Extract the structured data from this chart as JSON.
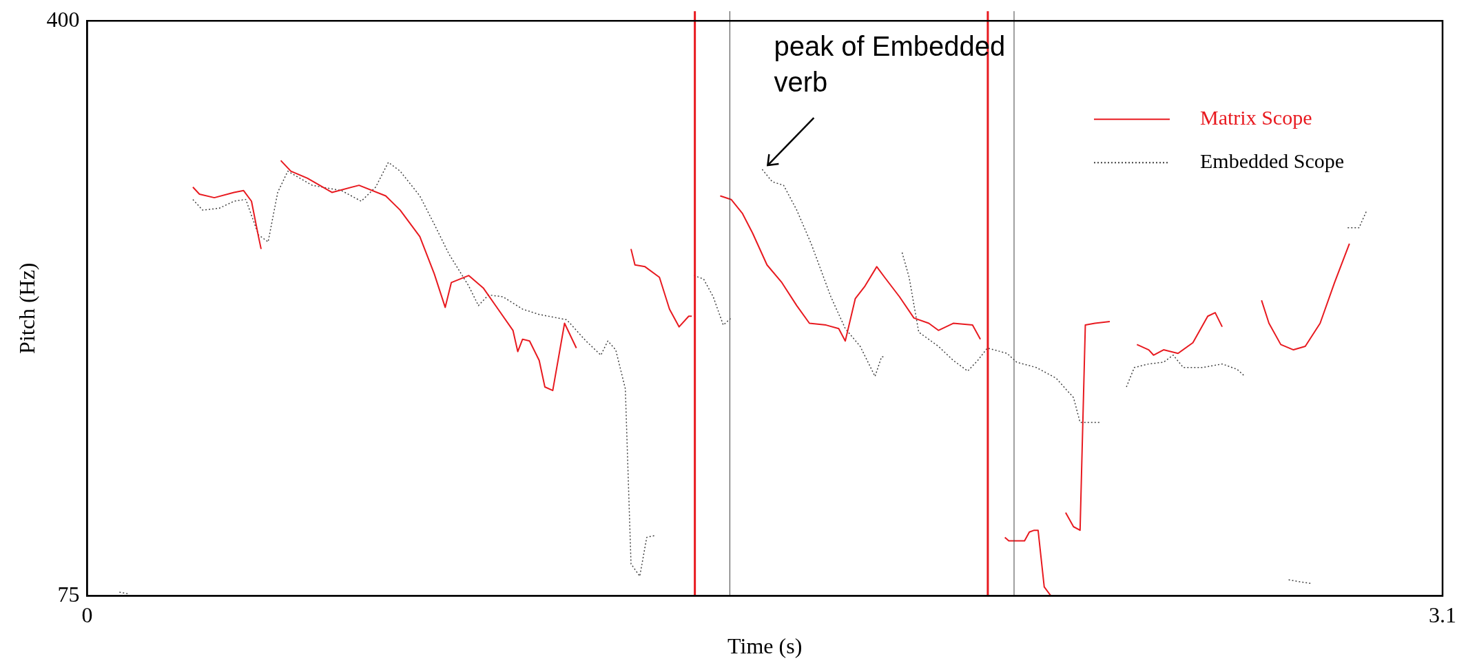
{
  "chart_data": {
    "type": "line",
    "xlabel": "Time (s)",
    "ylabel": "Pitch (Hz)",
    "xlim": [
      0,
      3.1
    ],
    "xticks": [
      0,
      3.1
    ],
    "ylim": [
      75,
      400
    ],
    "yticks": [
      75,
      400
    ],
    "grid": false,
    "legend": "top right",
    "marker": "none",
    "series": [
      {
        "name": "Matrix Scope",
        "color": "#e8191f",
        "line_style": "solid",
        "x": [
          0.242,
          0.257,
          0.291,
          0.336,
          0.358,
          0.376,
          0.392,
          0.398,
          0.4,
          0.443,
          0.466,
          0.504,
          0.56,
          0.622,
          0.683,
          0.716,
          0.761,
          0.794,
          0.819,
          0.833,
          0.873,
          0.906,
          0.94,
          0.974,
          0.985,
          0.996,
          1.012,
          1.034,
          1.047,
          1.065,
          1.092,
          1.119,
          1.15,
          1.244,
          1.253,
          1.276,
          1.309,
          1.332,
          1.354,
          1.376,
          1.383,
          1.39,
          1.448,
          1.473,
          1.499,
          1.522,
          1.555,
          1.589,
          1.623,
          1.652,
          1.69,
          1.719,
          1.734,
          1.757,
          1.779,
          1.806,
          1.824,
          1.858,
          1.891,
          1.925,
          1.947,
          1.981,
          2.025,
          2.043,
          2.06,
          2.099,
          2.108,
          2.144,
          2.155,
          2.166,
          2.175,
          2.189,
          2.204,
          2.22,
          2.238,
          2.256,
          2.271,
          2.283,
          2.305,
          2.339,
          2.36,
          2.401,
          2.428,
          2.439,
          2.462,
          2.495,
          2.529,
          2.563,
          2.58,
          2.596,
          2.63,
          2.686,
          2.703,
          2.73,
          2.759,
          2.786,
          2.82,
          2.853,
          2.887
        ],
        "values": [
          306,
          302,
          300,
          303,
          304,
          298,
          278,
          271,
          null,
          321,
          315,
          311,
          303,
          307,
          301,
          293,
          278,
          257,
          238,
          252,
          256,
          249,
          237,
          225,
          213,
          220,
          219,
          208,
          193,
          191,
          229,
          215,
          null,
          271,
          262,
          261,
          255,
          237,
          227,
          233,
          233,
          null,
          301,
          299,
          291,
          280,
          262,
          252,
          239,
          229,
          228,
          226,
          219,
          243,
          250,
          261,
          255,
          244,
          232,
          229,
          225,
          229,
          228,
          220,
          null,
          108,
          106,
          106,
          111,
          112,
          112,
          80,
          75,
          null,
          122,
          114,
          112,
          228,
          229,
          230,
          null,
          217,
          214,
          211,
          214,
          212,
          218,
          233,
          235,
          227,
          null,
          242,
          229,
          217,
          214,
          216,
          229,
          252,
          274
        ]
      },
      {
        "name": "Embedded Scope",
        "color": "#404040",
        "line_style": "dotted",
        "x": [
          0.074,
          0.096,
          0.1,
          0.242,
          0.264,
          0.302,
          0.336,
          0.363,
          0.392,
          0.414,
          0.436,
          0.459,
          0.515,
          0.582,
          0.627,
          0.66,
          0.689,
          0.716,
          0.761,
          0.794,
          0.828,
          0.873,
          0.895,
          0.918,
          0.951,
          0.996,
          1.034,
          1.097,
          1.141,
          1.175,
          1.191,
          1.209,
          1.231,
          1.244,
          1.264,
          1.28,
          1.298,
          1.31,
          1.388,
          1.41,
          1.432,
          1.455,
          1.473,
          1.49,
          1.544,
          1.567,
          1.593,
          1.623,
          1.656,
          1.701,
          1.734,
          1.768,
          1.802,
          1.817,
          1.826,
          1.85,
          1.864,
          1.88,
          1.902,
          1.947,
          1.981,
          2.014,
          2.037,
          2.059,
          2.104,
          2.126,
          2.171,
          2.216,
          2.256,
          2.271,
          2.316,
          2.34,
          2.377,
          2.395,
          2.428,
          2.462,
          2.484,
          2.507,
          2.551,
          2.596,
          2.63,
          2.648,
          2.7,
          2.748,
          2.771,
          2.798,
          2.85,
          2.883,
          2.909,
          2.927
        ],
        "values": [
          77,
          76,
          null,
          299,
          293,
          294,
          298,
          299,
          279,
          275,
          303,
          315,
          307,
          304,
          298,
          306,
          320,
          315,
          301,
          285,
          268,
          250,
          239,
          245,
          244,
          237,
          234,
          231,
          219,
          211,
          219,
          214,
          192,
          93,
          86,
          108,
          109,
          null,
          256,
          254,
          244,
          228,
          232,
          null,
          316,
          309,
          307,
          293,
          274,
          244,
          226,
          216,
          199,
          210,
          210,
          null,
          269,
          255,
          224,
          216,
          208,
          202,
          208,
          215,
          212,
          207,
          204,
          198,
          187,
          173,
          173,
          null,
          193,
          204,
          206,
          207,
          211,
          204,
          204,
          206,
          203,
          199,
          null,
          84,
          83,
          82,
          null,
          283,
          283,
          293
        ]
      }
    ],
    "ref_lines": [
      {
        "axis": "x",
        "value": 1.39,
        "color": "#e8191f"
      },
      {
        "axis": "x",
        "value": 1.47,
        "color": "#404040"
      },
      {
        "axis": "x",
        "value": 2.06,
        "color": "#e8191f"
      },
      {
        "axis": "x",
        "value": 2.12,
        "color": "#404040"
      }
    ],
    "annotations": [
      {
        "text": "peak of Embedded verb",
        "x": 1.544,
        "y": 316
      }
    ]
  }
}
